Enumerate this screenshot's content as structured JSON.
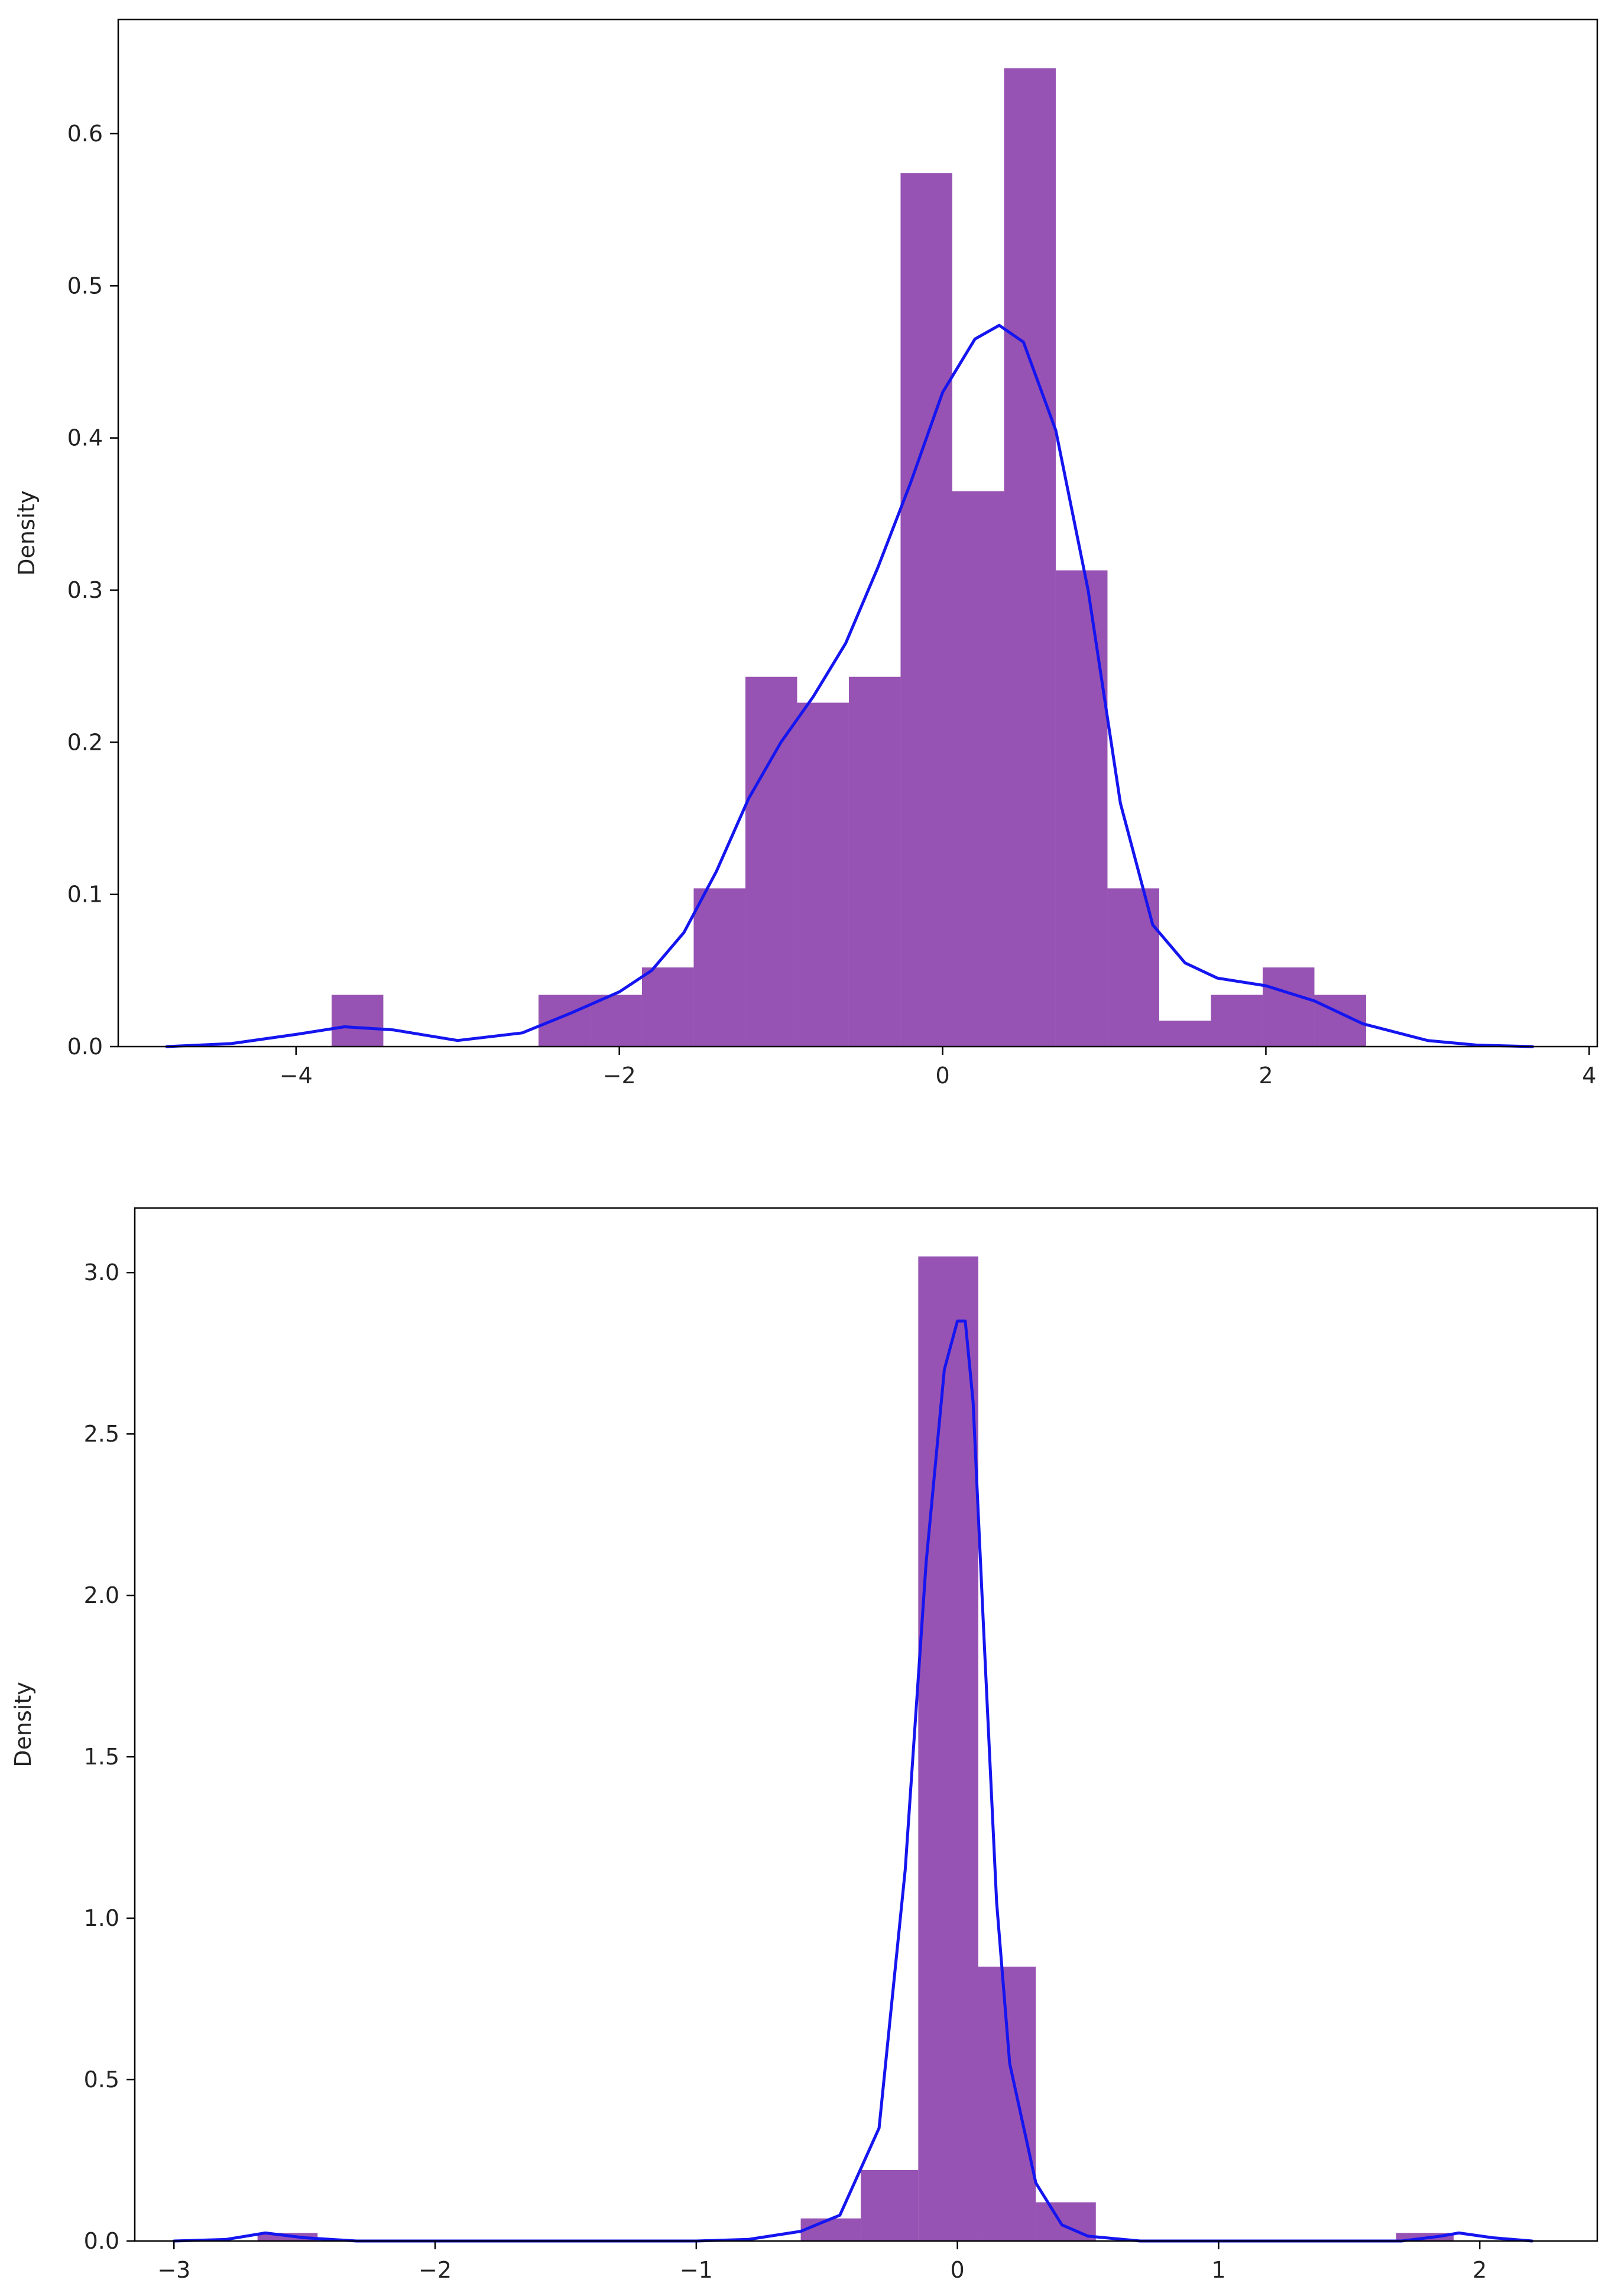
{
  "colors": {
    "bar": "#8e44ad",
    "kde": "#1515f0",
    "axes": "#000000"
  },
  "chart_data": [
    {
      "type": "histogram",
      "ylabel": "Density",
      "xlabel": "",
      "xlim": [
        -5.1,
        4.05
      ],
      "ylim": [
        0,
        0.675
      ],
      "xticks": [
        -4,
        -2,
        0,
        2,
        4
      ],
      "xtick_labels": [
        "−4",
        "−2",
        "0",
        "2",
        "4"
      ],
      "yticks": [
        0,
        0.1,
        0.2,
        0.3,
        0.4,
        0.5,
        0.6
      ],
      "ytick_labels": [
        "0.0",
        "0.1",
        "0.2",
        "0.3",
        "0.4",
        "0.5",
        "0.6"
      ],
      "bins": [
        {
          "x0": -3.78,
          "x1": -3.46,
          "value": 0.034
        },
        {
          "x0": -2.5,
          "x1": -2.18,
          "value": 0.034
        },
        {
          "x0": -2.18,
          "x1": -1.86,
          "value": 0.034
        },
        {
          "x0": -1.86,
          "x1": -1.54,
          "value": 0.052
        },
        {
          "x0": -1.54,
          "x1": -1.22,
          "value": 0.104
        },
        {
          "x0": -1.22,
          "x1": -0.9,
          "value": 0.243
        },
        {
          "x0": -0.9,
          "x1": -0.58,
          "value": 0.226
        },
        {
          "x0": -0.58,
          "x1": -0.26,
          "value": 0.243
        },
        {
          "x0": -0.26,
          "x1": 0.06,
          "value": 0.574
        },
        {
          "x0": 0.06,
          "x1": 0.38,
          "value": 0.365
        },
        {
          "x0": 0.38,
          "x1": 0.7,
          "value": 0.643
        },
        {
          "x0": 0.7,
          "x1": 1.02,
          "value": 0.313
        },
        {
          "x0": 1.02,
          "x1": 1.34,
          "value": 0.104
        },
        {
          "x0": 1.34,
          "x1": 1.66,
          "value": 0.017
        },
        {
          "x0": 1.66,
          "x1": 1.98,
          "value": 0.034
        },
        {
          "x0": 1.98,
          "x1": 2.3,
          "value": 0.052
        },
        {
          "x0": 2.3,
          "x1": 2.62,
          "value": 0.034
        }
      ],
      "kde": {
        "x": [
          -4.8,
          -4.4,
          -4.0,
          -3.7,
          -3.4,
          -3.0,
          -2.6,
          -2.3,
          -2.0,
          -1.8,
          -1.6,
          -1.4,
          -1.2,
          -1.0,
          -0.8,
          -0.6,
          -0.4,
          -0.2,
          0.0,
          0.2,
          0.35,
          0.5,
          0.7,
          0.9,
          1.1,
          1.3,
          1.5,
          1.7,
          2.0,
          2.3,
          2.6,
          3.0,
          3.3,
          3.65
        ],
        "y": [
          0.0,
          0.002,
          0.008,
          0.013,
          0.011,
          0.004,
          0.009,
          0.022,
          0.036,
          0.05,
          0.075,
          0.115,
          0.163,
          0.2,
          0.23,
          0.265,
          0.315,
          0.37,
          0.43,
          0.465,
          0.474,
          0.463,
          0.405,
          0.3,
          0.16,
          0.08,
          0.055,
          0.045,
          0.04,
          0.03,
          0.015,
          0.004,
          0.001,
          0.0
        ]
      }
    },
    {
      "type": "histogram",
      "ylabel": "Density",
      "xlabel": "",
      "xlim": [
        -3.15,
        2.45
      ],
      "ylim": [
        0,
        3.2
      ],
      "xticks": [
        -3,
        -2,
        -1,
        0,
        1,
        2
      ],
      "xtick_labels": [
        "−3",
        "−2",
        "−1",
        "0",
        "1",
        "2"
      ],
      "yticks": [
        0,
        0.5,
        1.0,
        1.5,
        2.0,
        2.5,
        3.0
      ],
      "ytick_labels": [
        "0.0",
        "0.5",
        "1.0",
        "1.5",
        "2.0",
        "2.5",
        "3.0"
      ],
      "bins": [
        {
          "x0": -2.68,
          "x1": -2.45,
          "value": 0.025
        },
        {
          "x0": -0.6,
          "x1": -0.37,
          "value": 0.07
        },
        {
          "x0": -0.37,
          "x1": -0.15,
          "value": 0.22
        },
        {
          "x0": -0.15,
          "x1": 0.08,
          "value": 3.05
        },
        {
          "x0": 0.08,
          "x1": 0.3,
          "value": 0.85
        },
        {
          "x0": 0.3,
          "x1": 0.53,
          "value": 0.12
        },
        {
          "x0": 1.68,
          "x1": 1.9,
          "value": 0.025
        }
      ],
      "kde": {
        "x": [
          -3.0,
          -2.8,
          -2.65,
          -2.5,
          -2.3,
          -1.0,
          -0.8,
          -0.6,
          -0.45,
          -0.3,
          -0.2,
          -0.12,
          -0.05,
          0.0,
          0.03,
          0.06,
          0.1,
          0.15,
          0.2,
          0.3,
          0.4,
          0.5,
          0.7,
          1.0,
          1.7,
          1.85,
          1.92,
          2.05,
          2.2
        ],
        "y": [
          0.0,
          0.005,
          0.025,
          0.01,
          0.0,
          0.0,
          0.005,
          0.03,
          0.08,
          0.35,
          1.15,
          2.1,
          2.7,
          2.85,
          2.85,
          2.6,
          1.9,
          1.05,
          0.55,
          0.18,
          0.05,
          0.015,
          0.0,
          0.0,
          0.0,
          0.015,
          0.025,
          0.01,
          0.0
        ]
      }
    }
  ]
}
